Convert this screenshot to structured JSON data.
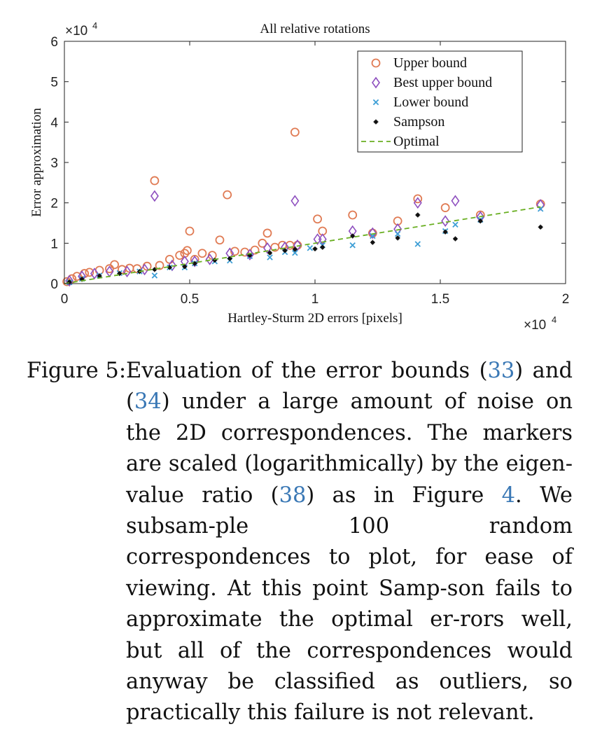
{
  "chart_data": {
    "type": "scatter",
    "title": "All relative rotations",
    "xlabel": "Hartley-Sturm 2D errors [pixels]",
    "ylabel": "Error approximation",
    "x_multiplier": "×10",
    "x_multiplier_exp": "4",
    "y_multiplier": "×10",
    "y_multiplier_exp": "4",
    "xlim": [
      0,
      20000
    ],
    "ylim": [
      0,
      60000
    ],
    "x_ticks": [
      0,
      5000,
      10000,
      15000,
      20000
    ],
    "x_tick_labels": [
      "0",
      "0.5",
      "1",
      "1.5",
      "2"
    ],
    "y_ticks": [
      0,
      10000,
      20000,
      30000,
      40000,
      50000,
      60000
    ],
    "y_tick_labels": [
      "0",
      "1",
      "2",
      "3",
      "4",
      "5",
      "6"
    ],
    "grid": false,
    "legend_position": "top-right",
    "series": [
      {
        "name": "Upper bound",
        "marker": "circle",
        "color": "#e07b54",
        "points": [
          [
            100,
            500
          ],
          [
            300,
            1200
          ],
          [
            500,
            1800
          ],
          [
            800,
            2500
          ],
          [
            1000,
            2800
          ],
          [
            1400,
            3300
          ],
          [
            1800,
            3700
          ],
          [
            2000,
            4700
          ],
          [
            2300,
            3500
          ],
          [
            2600,
            3800
          ],
          [
            2900,
            3700
          ],
          [
            3300,
            4300
          ],
          [
            3600,
            25500
          ],
          [
            3800,
            4500
          ],
          [
            4200,
            6000
          ],
          [
            4600,
            7000
          ],
          [
            4800,
            7500
          ],
          [
            4900,
            8200
          ],
          [
            5000,
            13000
          ],
          [
            5200,
            6000
          ],
          [
            5500,
            7500
          ],
          [
            5900,
            7000
          ],
          [
            6200,
            10800
          ],
          [
            6500,
            22000
          ],
          [
            6800,
            8000
          ],
          [
            7200,
            7800
          ],
          [
            7600,
            8300
          ],
          [
            7900,
            10000
          ],
          [
            8100,
            12500
          ],
          [
            8400,
            9000
          ],
          [
            8700,
            9500
          ],
          [
            9000,
            9500
          ],
          [
            9200,
            37500
          ],
          [
            9300,
            9500
          ],
          [
            10100,
            16000
          ],
          [
            10300,
            13000
          ],
          [
            11500,
            17000
          ],
          [
            12300,
            12500
          ],
          [
            13300,
            15500
          ],
          [
            14100,
            21000
          ],
          [
            15200,
            18800
          ],
          [
            16600,
            17000
          ],
          [
            19000,
            19700
          ]
        ]
      },
      {
        "name": "Best upper bound",
        "marker": "diamond",
        "color": "#8e4fbf",
        "points": [
          [
            200,
            700
          ],
          [
            700,
            1800
          ],
          [
            1200,
            2500
          ],
          [
            1800,
            3000
          ],
          [
            2500,
            3000
          ],
          [
            3200,
            3500
          ],
          [
            3600,
            21700
          ],
          [
            4300,
            4500
          ],
          [
            4800,
            5500
          ],
          [
            5200,
            5500
          ],
          [
            5800,
            6000
          ],
          [
            6600,
            7500
          ],
          [
            7400,
            7200
          ],
          [
            8100,
            8800
          ],
          [
            8800,
            9000
          ],
          [
            9200,
            20500
          ],
          [
            9300,
            9500
          ],
          [
            10100,
            11000
          ],
          [
            10300,
            11000
          ],
          [
            11500,
            13000
          ],
          [
            12300,
            12500
          ],
          [
            13300,
            13500
          ],
          [
            14100,
            20000
          ],
          [
            15200,
            15500
          ],
          [
            15600,
            20500
          ],
          [
            16600,
            16500
          ],
          [
            19000,
            19500
          ]
        ]
      },
      {
        "name": "Lower bound",
        "marker": "x",
        "color": "#3e9fd6",
        "points": [
          [
            200,
            300
          ],
          [
            700,
            1200
          ],
          [
            1400,
            2000
          ],
          [
            2200,
            2600
          ],
          [
            3000,
            3000
          ],
          [
            3600,
            2000
          ],
          [
            4200,
            4000
          ],
          [
            4800,
            4000
          ],
          [
            5200,
            5000
          ],
          [
            6000,
            5500
          ],
          [
            6600,
            5700
          ],
          [
            7400,
            6800
          ],
          [
            8200,
            6500
          ],
          [
            8800,
            7800
          ],
          [
            9200,
            7600
          ],
          [
            9800,
            8800
          ],
          [
            10300,
            9500
          ],
          [
            11500,
            9500
          ],
          [
            12300,
            11800
          ],
          [
            13300,
            12300
          ],
          [
            14100,
            9800
          ],
          [
            15200,
            13000
          ],
          [
            15600,
            14600
          ],
          [
            16600,
            15800
          ],
          [
            19000,
            18500
          ]
        ]
      },
      {
        "name": "Sampson",
        "marker": "star",
        "color": "#111111",
        "points": [
          [
            200,
            400
          ],
          [
            700,
            1100
          ],
          [
            1400,
            1900
          ],
          [
            2200,
            2500
          ],
          [
            3000,
            3000
          ],
          [
            3600,
            3500
          ],
          [
            4200,
            4000
          ],
          [
            4800,
            4200
          ],
          [
            5200,
            5000
          ],
          [
            6000,
            5800
          ],
          [
            6600,
            6200
          ],
          [
            7400,
            7000
          ],
          [
            8200,
            7600
          ],
          [
            8800,
            8200
          ],
          [
            9200,
            8500
          ],
          [
            10000,
            8600
          ],
          [
            10300,
            9000
          ],
          [
            11500,
            11800
          ],
          [
            12300,
            10200
          ],
          [
            13300,
            11300
          ],
          [
            14100,
            17000
          ],
          [
            15200,
            12800
          ],
          [
            15600,
            11100
          ],
          [
            16600,
            15500
          ],
          [
            19000,
            14000
          ]
        ]
      },
      {
        "name": "Optimal",
        "marker": "dashed-line",
        "color": "#6aaf22",
        "points": [
          [
            0,
            0
          ],
          [
            19000,
            19000
          ]
        ]
      }
    ]
  },
  "caption": {
    "label": "Figure 5:",
    "seg1": "Evaluation of the error bounds (",
    "ref33": "33",
    "seg2": ") and (",
    "ref34": "34",
    "seg3": ") under a large amount of noise on the 2D correspondences.  The markers are scaled (logarithmically) by the eigen-value ratio (",
    "ref38": "38",
    "seg4": ") as in Figure ",
    "ref4": "4",
    "seg5": ". We subsam-ple 100 random correspondences to plot, for ease of viewing.  At this point Samp-son fails to approximate the optimal er-rors well, but all of the correspondences would anyway be classified as outliers, so practically this failure is not relevant."
  }
}
